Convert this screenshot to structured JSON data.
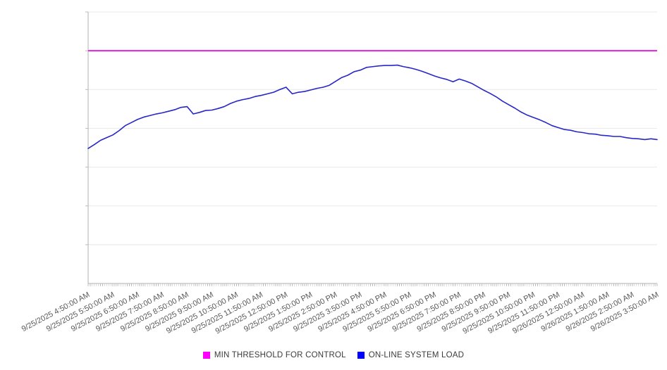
{
  "chart_data": {
    "type": "line",
    "title": "",
    "xlabel": "",
    "ylabel": "",
    "x_start": "9/25/2025 4:50:00 AM",
    "x_end": "9/26/2025 3:50:00 AM",
    "x_interval_minutes": 15,
    "x_minor_tick_minutes": 5,
    "x_tick_labels": [
      "9/25/2025 4:50:00 AM",
      "9/25/2025 5:50:00 AM",
      "9/25/2025 6:50:00 AM",
      "9/25/2025 7:50:00 AM",
      "9/25/2025 8:50:00 AM",
      "9/25/2025 9:50:00 AM",
      "9/25/2025 10:50:00 AM",
      "9/25/2025 11:50:00 AM",
      "9/25/2025 12:50:00 PM",
      "9/25/2025 1:50:00 PM",
      "9/25/2025 2:50:00 PM",
      "9/25/2025 3:50:00 PM",
      "9/25/2025 4:50:00 PM",
      "9/25/2025 5:50:00 PM",
      "9/25/2025 6:50:00 PM",
      "9/25/2025 7:50:00 PM",
      "9/25/2025 8:50:00 PM",
      "9/25/2025 9:50:00 PM",
      "9/25/2025 10:50:00 PM",
      "9/25/2025 11:50:00 PM",
      "9/26/2025 12:50:00 AM",
      "9/26/2025 1:50:00 AM",
      "9/26/2025 2:50:00 AM",
      "9/26/2025 3:50:00 AM"
    ],
    "ylim": [
      0,
      700
    ],
    "y_gridline_step": 100,
    "y_axis_labels_visible": false,
    "grid": true,
    "legend_position": "bottom-center",
    "series": [
      {
        "name": "MIN THRESHOLD FOR CONTROL",
        "kind": "threshold",
        "swatch_color": "#ff00ff",
        "line_color": "#e321e3",
        "value": 600
      },
      {
        "name": "ON-LINE SYSTEM LOAD",
        "kind": "line",
        "swatch_color": "#0000ff",
        "line_color": "#2727c9",
        "values": [
          348,
          358,
          369,
          376,
          383,
          394,
          407,
          415,
          423,
          429,
          433,
          437,
          440,
          444,
          448,
          454,
          456,
          437,
          441,
          446,
          447,
          451,
          456,
          464,
          470,
          474,
          477,
          482,
          485,
          489,
          493,
          500,
          506,
          489,
          493,
          495,
          499,
          503,
          506,
          511,
          521,
          531,
          537,
          546,
          550,
          557,
          559,
          561,
          562,
          562,
          563,
          559,
          556,
          552,
          547,
          541,
          535,
          530,
          526,
          520,
          527,
          522,
          516,
          507,
          498,
          490,
          481,
          470,
          461,
          452,
          442,
          434,
          428,
          422,
          415,
          407,
          402,
          397,
          395,
          391,
          389,
          386,
          385,
          382,
          381,
          379,
          379,
          376,
          374,
          373,
          371,
          373,
          371
        ]
      }
    ],
    "colors": {
      "gridline": "#e8e8e8",
      "axis": "#b2b2b2",
      "minor_tick": "#bdbdbd",
      "tick_label_text": "#595959"
    }
  },
  "legend": {
    "items": [
      {
        "label": "MIN THRESHOLD FOR CONTROL",
        "color": "#ff00ff"
      },
      {
        "label": "ON-LINE SYSTEM LOAD",
        "color": "#0000ff"
      }
    ]
  }
}
